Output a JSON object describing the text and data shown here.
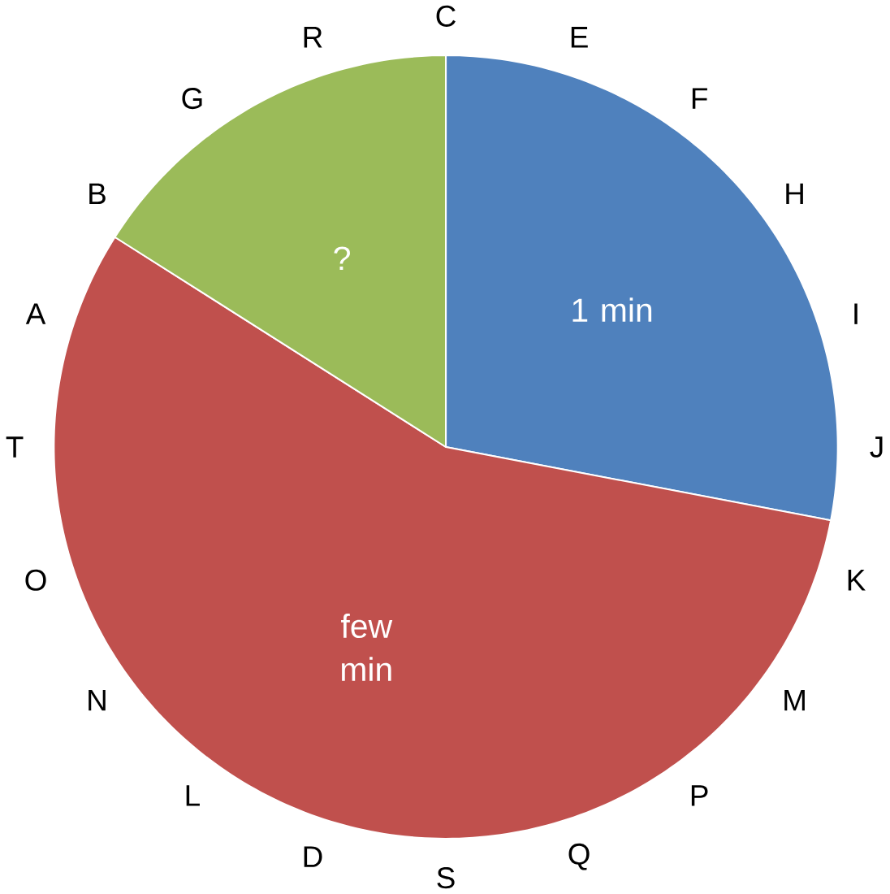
{
  "chart_data": {
    "type": "pie",
    "categories": [
      "1 min",
      "few min",
      "?"
    ],
    "values": [
      28,
      56,
      16
    ],
    "colors": [
      "#4f81bd",
      "#c0504d",
      "#9bbb59"
    ],
    "annotations": [
      "C",
      "E",
      "F",
      "H",
      "I",
      "J",
      "K",
      "M",
      "P",
      "Q",
      "S",
      "D",
      "L",
      "N",
      "O",
      "T",
      "A",
      "B",
      "G",
      "R"
    ]
  }
}
